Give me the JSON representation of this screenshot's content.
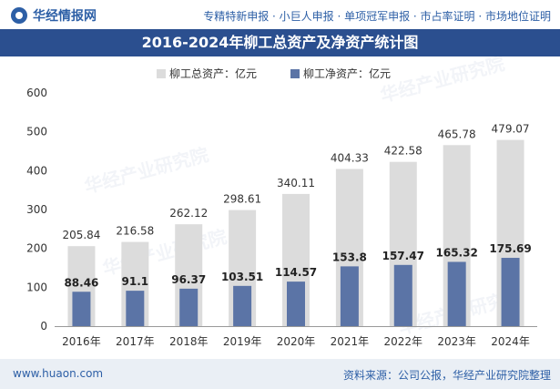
{
  "header": {
    "site_name": "华经情报网",
    "tagline": "专精特新申报 · 小巨人申报 · 单项冠军申报 · 市占率证明 · 市场地位证明"
  },
  "footer": {
    "url": "www.huaon.com",
    "source": "资料来源：公司公报，华经产业研究院整理"
  },
  "watermark": "华经产业研究院",
  "colors": {
    "title_bg": "#2b4f8f",
    "total_assets": "#dcdcdc",
    "net_assets": "#5b74a6",
    "footer_bg": "#eaeff5"
  },
  "chart_data": {
    "type": "bar",
    "title": "2016-2024年柳工总资产及净资产统计图",
    "categories": [
      "2016年",
      "2017年",
      "2018年",
      "2019年",
      "2020年",
      "2021年",
      "2022年",
      "2023年",
      "2024年"
    ],
    "series": [
      {
        "name": "柳工总资产：亿元",
        "values": [
          205.84,
          216.58,
          262.12,
          298.61,
          340.11,
          404.33,
          422.58,
          465.78,
          479.07
        ]
      },
      {
        "name": "柳工净资产：亿元",
        "values": [
          88.46,
          91.1,
          96.37,
          103.51,
          114.57,
          153.8,
          157.47,
          165.32,
          175.69
        ]
      }
    ],
    "labels": {
      "total": [
        "205.84",
        "216.58",
        "262.12",
        "298.61",
        "340.11",
        "404.33",
        "422.58",
        "465.78",
        "479.07"
      ],
      "net": [
        "88.46",
        "91.1",
        "96.37",
        "103.51",
        "114.57",
        "153.8",
        "157.47",
        "165.32",
        "175.69"
      ]
    },
    "yticks": [
      "0",
      "100",
      "200",
      "300",
      "400",
      "500",
      "600"
    ],
    "ylim": [
      0,
      600
    ],
    "legend_position": "top-center",
    "grid": false,
    "overlapped_bars": true
  }
}
